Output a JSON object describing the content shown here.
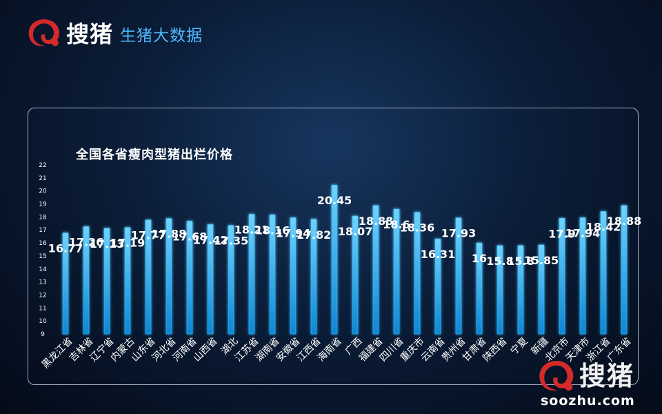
{
  "header": {
    "brand_name": "搜猪",
    "subtitle": "生猪大数据"
  },
  "watermark": {
    "brand_name": "搜猪",
    "url": "soozhu.com"
  },
  "colors": {
    "bar": "#1aa3e8",
    "bar_glow": "#38bdf8",
    "logo_red": "#d42a2a",
    "axis_text": "#ffffff"
  },
  "chart_data": {
    "type": "bar",
    "title": "全国各省瘦肉型猪出栏价格",
    "xlabel": "",
    "ylabel": "",
    "ylim": [
      9,
      22
    ],
    "yticks": [
      9,
      10,
      11,
      12,
      13,
      14,
      15,
      16,
      17,
      18,
      19,
      20,
      21,
      22
    ],
    "grid": false,
    "categories": [
      "黑龙江省",
      "吉林省",
      "辽宁省",
      "内蒙古",
      "山东省",
      "河北省",
      "河南省",
      "山西省",
      "湖北",
      "江苏省",
      "湖南省",
      "安徽省",
      "江西省",
      "海南省",
      "广西",
      "福建省",
      "四川省",
      "重庆市",
      "云南省",
      "贵州省",
      "甘肃省",
      "陕西省",
      "宁夏",
      "新疆",
      "北京市",
      "天津市",
      "浙江省",
      "广东省"
    ],
    "values": [
      16.77,
      17.26,
      17.13,
      17.19,
      17.77,
      17.88,
      17.68,
      17.42,
      17.35,
      18.21,
      18.16,
      17.94,
      17.82,
      20.45,
      18.07,
      18.88,
      18.6,
      18.36,
      16.31,
      17.93,
      16,
      15.8,
      15.8,
      15.85,
      17.9,
      17.94,
      18.42,
      18.88
    ],
    "data_labels": [
      "16.77",
      "17.26",
      "17.13",
      "17.19",
      "17.77",
      "17.88",
      "17.68",
      "17.42",
      "17.35",
      "18.21",
      "18.16",
      "17.94",
      "17.82",
      "20.45",
      "18.07",
      "18.88",
      "18.6",
      "18.36",
      "16.31",
      "17.93",
      "16",
      "15.8",
      "15.8",
      "15.85",
      "17.9",
      "17.94",
      "18.42",
      "18.88"
    ]
  }
}
